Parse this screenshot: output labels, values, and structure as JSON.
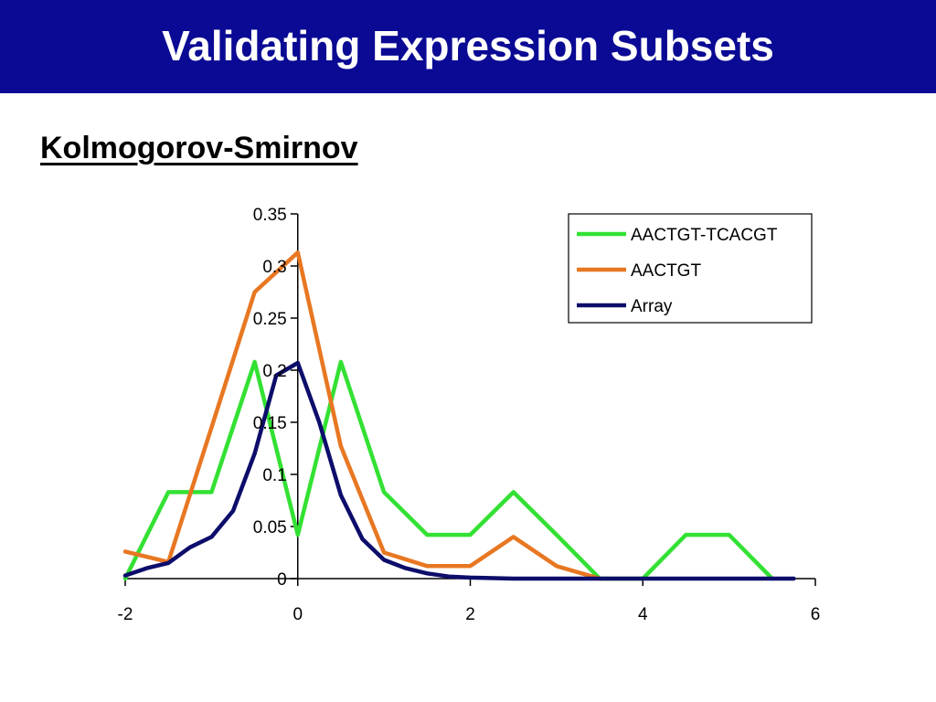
{
  "slide": {
    "title": "Validating Expression Subsets",
    "subtitle": "Kolmogorov-Smirnov",
    "colors": {
      "title_bar": "#0a0a94",
      "title_text": "#ffffff"
    }
  },
  "chart_data": {
    "type": "line",
    "title": "",
    "xlabel": "",
    "ylabel": "",
    "xlim": [
      -2,
      6
    ],
    "ylim": [
      0,
      0.35
    ],
    "x_ticks": [
      -2,
      0,
      2,
      4,
      6
    ],
    "x_tick_labels": [
      "-2",
      "0",
      "2",
      "4",
      "6"
    ],
    "y_ticks": [
      0,
      0.05,
      0.1,
      0.15,
      0.2,
      0.25,
      0.3,
      0.35
    ],
    "y_tick_labels": [
      "0",
      "0.05",
      "0.1",
      "0.15",
      "0.2",
      "0.25",
      "0.3",
      "0.35"
    ],
    "grid": false,
    "legend_position": "top-right",
    "series": [
      {
        "name": "AACTGT-TCACGT",
        "color": "#33e133",
        "x": [
          -2,
          -1.5,
          -1,
          -0.5,
          0,
          0.5,
          1,
          1.5,
          2,
          2.5,
          3,
          3.5,
          4,
          4.5,
          5,
          5.5
        ],
        "y": [
          0,
          0.083,
          0.083,
          0.208,
          0.042,
          0.208,
          0.083,
          0.042,
          0.042,
          0.083,
          0.042,
          0,
          0,
          0.042,
          0.042,
          0
        ]
      },
      {
        "name": "AACTGT",
        "color": "#e87722",
        "x": [
          -2,
          -1.5,
          -1,
          -0.5,
          0,
          0.5,
          1,
          1.5,
          2,
          2.5,
          3,
          3.5
        ],
        "y": [
          0.026,
          0.016,
          0.145,
          0.275,
          0.313,
          0.127,
          0.025,
          0.012,
          0.012,
          0.04,
          0.012,
          0
        ]
      },
      {
        "name": "Array",
        "color": "#0d0d6b",
        "x": [
          -2,
          -1.75,
          -1.5,
          -1.25,
          -1,
          -0.75,
          -0.5,
          -0.25,
          0,
          0.25,
          0.5,
          0.75,
          1,
          1.25,
          1.5,
          1.75,
          2,
          2.5,
          3,
          4,
          5,
          5.75
        ],
        "y": [
          0.003,
          0.01,
          0.015,
          0.03,
          0.04,
          0.065,
          0.12,
          0.195,
          0.207,
          0.15,
          0.08,
          0.038,
          0.018,
          0.01,
          0.005,
          0.002,
          0.001,
          0,
          0,
          0,
          0,
          0
        ]
      }
    ]
  }
}
